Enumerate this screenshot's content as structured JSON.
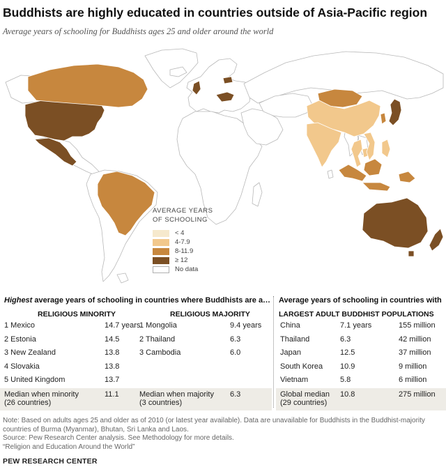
{
  "header": {
    "title": "Buddhists are highly educated in countries outside of Asia-Pacific region",
    "subtitle": "Average years of schooling for Buddhists ages 25 and older around the world"
  },
  "legend": {
    "title_line1": "AVERAGE YEARS",
    "title_line2": "OF SCHOOLING",
    "items": [
      {
        "label": "< 4",
        "color": "#f6e9cd"
      },
      {
        "label": "4-7.9",
        "color": "#f2c88c"
      },
      {
        "label": "8-11.9",
        "color": "#c7873e"
      },
      {
        "label": "≥ 12",
        "color": "#7b4f24"
      },
      {
        "label": "No data",
        "color": "#ffffff"
      }
    ],
    "land_no_data_color": "#ffffff",
    "land_border_color": "#b8b8b8"
  },
  "chart_data": [
    {
      "type": "map",
      "categories": [
        "< 4",
        "4-7.9",
        "8-11.9",
        "≥ 12",
        "No data"
      ]
    },
    {
      "type": "table",
      "heading_emphasis": "Highest",
      "heading_rest": " average years of schooling in countries where Buddhists are a…",
      "columns": [
        {
          "title": "RELIGIOUS MINORITY",
          "rows": [
            {
              "rank": "1",
              "country": "Mexico",
              "value": "14.7 years"
            },
            {
              "rank": "2",
              "country": "Estonia",
              "value": "14.5"
            },
            {
              "rank": "3",
              "country": "New Zealand",
              "value": "13.8"
            },
            {
              "rank": "4",
              "country": "Slovakia",
              "value": "13.8"
            },
            {
              "rank": "5",
              "country": "United Kingdom",
              "value": "13.7"
            }
          ],
          "median_label_1": "Median when minority",
          "median_label_2": "(26 countries)",
          "median_value": "11.1"
        },
        {
          "title": "RELIGIOUS MAJORITY",
          "rows": [
            {
              "rank": "1",
              "country": "Mongolia",
              "value": "9.4 years"
            },
            {
              "rank": "2",
              "country": "Thailand",
              "value": "6.3"
            },
            {
              "rank": "3",
              "country": "Cambodia",
              "value": "6.0"
            }
          ],
          "median_label_1": "Median when majority",
          "median_label_2": "(3 countries)",
          "median_value": "6.3"
        }
      ]
    },
    {
      "type": "table",
      "heading_line1": "Average years of schooling in countries with",
      "heading_line2": "LARGEST ADULT BUDDHIST POPULATIONS",
      "rows": [
        {
          "country": "China",
          "years": "7.1 years",
          "population": "155 million"
        },
        {
          "country": "Thailand",
          "years": "6.3",
          "population": "42 million"
        },
        {
          "country": "Japan",
          "years": "12.5",
          "population": "37 million"
        },
        {
          "country": "South Korea",
          "years": "10.9",
          "population": "9 million"
        },
        {
          "country": "Vietnam",
          "years": "5.8",
          "population": "6 million"
        }
      ],
      "median_label_1": "Global median",
      "median_label_2": "(29 countries)",
      "median_years": "10.8",
      "median_population": "275 million"
    }
  ],
  "notes": {
    "line1": "Note: Based on adults ages 25 and older as of 2010 (or latest year available). Data are unavailable for Buddhists in the Buddhist-majority",
    "line2": "countries of Burma (Myanmar), Bhutan, Sri Lanka and Laos.",
    "line3": "Source: Pew Research Center analysis. See Methodology for more details.",
    "line4": "“Religion and Education Around the World”"
  },
  "footer": "PEW RESEARCH CENTER"
}
